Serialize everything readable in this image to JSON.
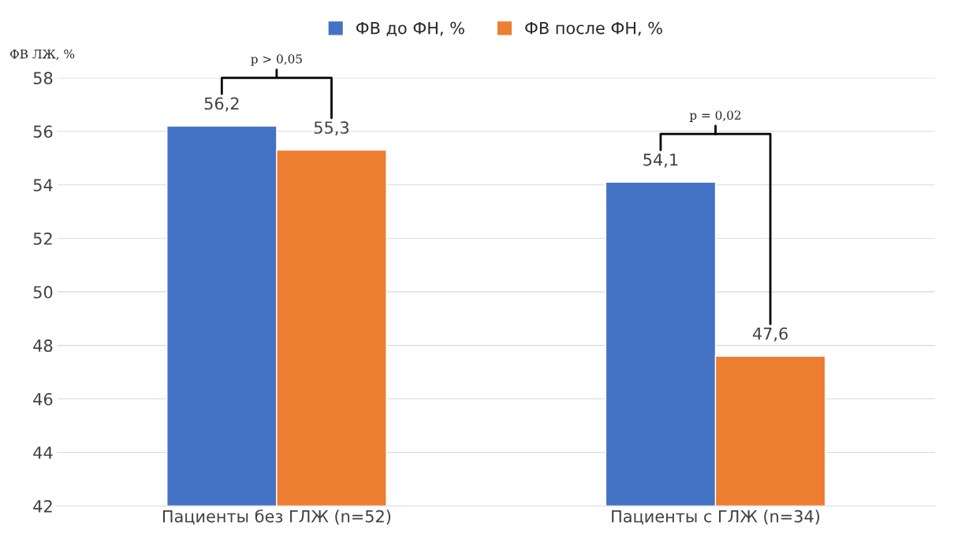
{
  "chart_data": {
    "type": "bar",
    "ylabel": "ФВ ЛЖ, %",
    "categories": [
      "Пациенты без ГЛЖ (n=52)",
      "Пациенты с ГЛЖ (n=34)"
    ],
    "series": [
      {
        "name": "ФВ до ФН, %",
        "color": "#4472c4",
        "values": [
          56.2,
          54.1
        ],
        "value_labels": [
          "56,2",
          "54,1"
        ]
      },
      {
        "name": "ФВ после ФН, %",
        "color": "#ed7d31",
        "values": [
          55.3,
          47.6
        ],
        "value_labels": [
          "55,3",
          "47,6"
        ]
      }
    ],
    "ylim": [
      42,
      58
    ],
    "yticks": [
      42,
      44,
      46,
      48,
      50,
      52,
      54,
      56,
      58
    ],
    "grid": "y",
    "legend": "top",
    "annotations": [
      "p > 0,05",
      "p = 0,02"
    ]
  }
}
